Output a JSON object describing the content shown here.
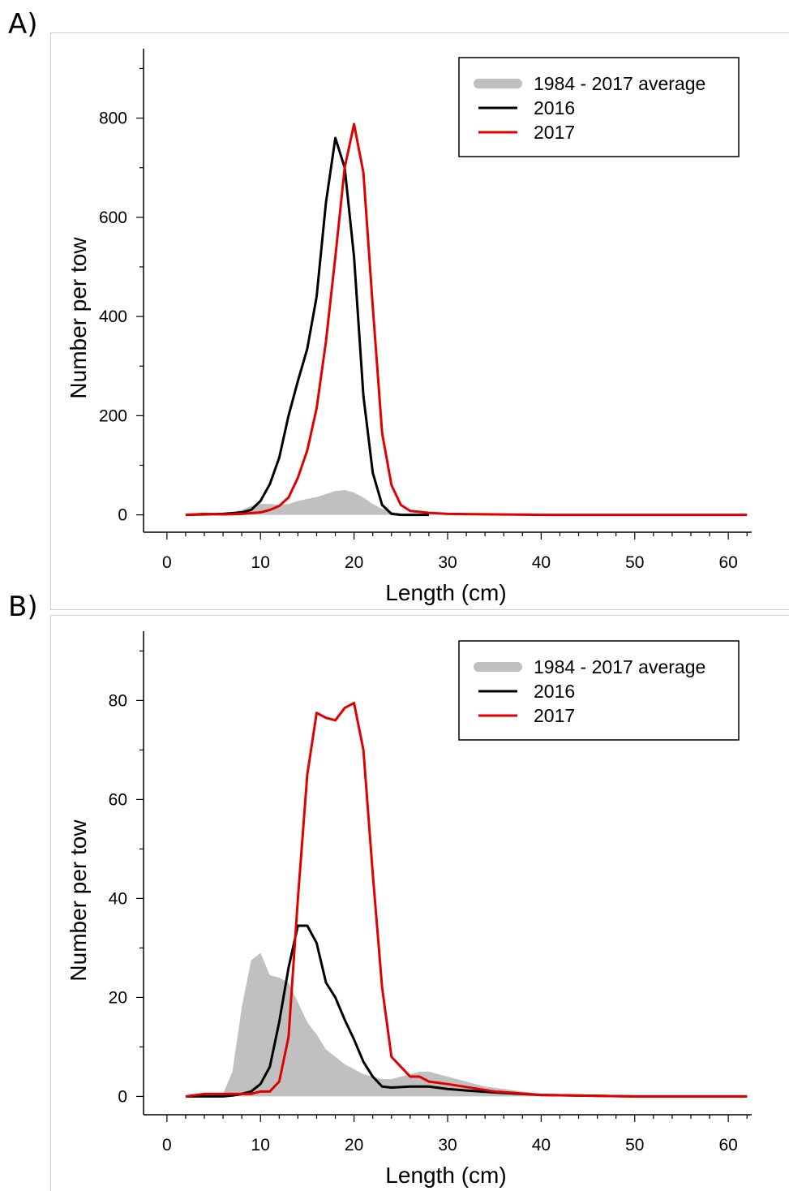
{
  "panels": {
    "a": {
      "label": "A)"
    },
    "b": {
      "label": "B)"
    }
  },
  "colors": {
    "average": "#c0c0c0",
    "y2016": "#000000",
    "y2017": "#e00000"
  },
  "chart_data": [
    {
      "type": "line",
      "panel": "A)",
      "xlabel": "Length (cm)",
      "ylabel": "Number per tow",
      "xlim": [
        -2.5,
        62.5
      ],
      "ylim": [
        -35,
        940
      ],
      "xticks": [
        0,
        10,
        20,
        30,
        40,
        50,
        60
      ],
      "yticks": [
        0,
        200,
        400,
        600,
        800
      ],
      "legend": {
        "position": "top-right",
        "entries": [
          "1984 - 2017 average",
          "2016",
          "2017"
        ]
      },
      "series": [
        {
          "name": "1984 - 2017 average",
          "style": "area",
          "x": [
            2,
            4,
            6,
            7,
            8,
            9,
            10,
            11,
            12,
            13,
            14,
            15,
            16,
            17,
            18,
            19,
            20,
            21,
            22,
            23,
            24,
            25,
            26,
            28,
            30,
            35,
            40,
            50,
            62
          ],
          "y": [
            0,
            1,
            2,
            5,
            10,
            18,
            22,
            22,
            20,
            22,
            28,
            32,
            36,
            42,
            48,
            50,
            45,
            35,
            22,
            12,
            6,
            3,
            2,
            1,
            0.5,
            0,
            0,
            0,
            0
          ]
        },
        {
          "name": "2016",
          "style": "line",
          "x": [
            2,
            4,
            6,
            8,
            9,
            10,
            11,
            12,
            13,
            14,
            15,
            16,
            17,
            18,
            19,
            20,
            21,
            22,
            23,
            24,
            25,
            26,
            28
          ],
          "y": [
            0,
            1,
            2,
            5,
            10,
            28,
            62,
            115,
            200,
            270,
            335,
            440,
            630,
            760,
            700,
            520,
            240,
            85,
            20,
            2,
            0,
            0,
            0
          ]
        },
        {
          "name": "2017",
          "style": "line",
          "x": [
            2,
            4,
            6,
            8,
            10,
            11,
            12,
            13,
            14,
            15,
            16,
            17,
            18,
            19,
            20,
            21,
            22,
            23,
            24,
            25,
            26,
            28,
            30,
            35,
            40,
            50,
            62
          ],
          "y": [
            0,
            2,
            1,
            2,
            5,
            10,
            18,
            35,
            75,
            130,
            215,
            350,
            520,
            700,
            788,
            690,
            420,
            165,
            60,
            20,
            8,
            4,
            2,
            1,
            0,
            0,
            0
          ]
        }
      ]
    },
    {
      "type": "line",
      "panel": "B)",
      "xlabel": "Length (cm)",
      "ylabel": "Number per tow",
      "xlim": [
        -2.5,
        62.5
      ],
      "ylim": [
        -3.7,
        94
      ],
      "xticks": [
        0,
        10,
        20,
        30,
        40,
        50,
        60
      ],
      "yticks": [
        0,
        20,
        40,
        60,
        80
      ],
      "legend": {
        "position": "top-right",
        "entries": [
          "1984 - 2017 average",
          "2016",
          "2017"
        ]
      },
      "series": [
        {
          "name": "1984 - 2017 average",
          "style": "area",
          "x": [
            2,
            4,
            5,
            6,
            7,
            8,
            9,
            10,
            11,
            12,
            13,
            14,
            15,
            16,
            17,
            18,
            19,
            20,
            21,
            22,
            23,
            24,
            25,
            26,
            27,
            28,
            29,
            30,
            32,
            34,
            36,
            38,
            40,
            42,
            44,
            50,
            62
          ],
          "y": [
            0,
            0,
            0.3,
            0.5,
            5,
            18,
            27.5,
            29,
            24.5,
            24,
            23,
            19,
            15,
            12.5,
            9.5,
            8,
            6.5,
            5.5,
            4.5,
            4,
            3.5,
            3.5,
            4,
            4.5,
            5,
            5,
            4.5,
            4,
            3,
            2,
            1.5,
            1,
            0.5,
            0.2,
            0,
            0,
            0
          ]
        },
        {
          "name": "2016",
          "style": "line",
          "x": [
            2,
            4,
            6,
            7,
            8,
            9,
            10,
            11,
            12,
            13,
            14,
            15,
            16,
            17,
            18,
            19,
            20,
            21,
            22,
            23,
            24,
            26,
            28,
            30,
            32,
            35,
            40,
            50,
            62
          ],
          "y": [
            0,
            0,
            0,
            0.2,
            0.5,
            1,
            2.5,
            6,
            15,
            26,
            34.5,
            34.5,
            31,
            23,
            20,
            15.5,
            11.5,
            7,
            4,
            2,
            1.8,
            2,
            2,
            1.5,
            1.2,
            0.8,
            0.3,
            0,
            0
          ]
        },
        {
          "name": "2017",
          "style": "line",
          "x": [
            2,
            4,
            6,
            8,
            9,
            10,
            11,
            12,
            13,
            14,
            15,
            16,
            17,
            18,
            19,
            20,
            21,
            22,
            23,
            24,
            25,
            26,
            27,
            28,
            30,
            35,
            40,
            50,
            62
          ],
          "y": [
            0,
            0.5,
            0.5,
            0.5,
            0.5,
            1,
            1,
            3,
            12,
            40,
            65,
            77.5,
            76.5,
            76,
            78.5,
            79.5,
            70,
            45,
            22,
            8,
            6,
            4,
            4,
            3,
            2.5,
            1,
            0.3,
            0,
            0
          ]
        }
      ]
    }
  ]
}
